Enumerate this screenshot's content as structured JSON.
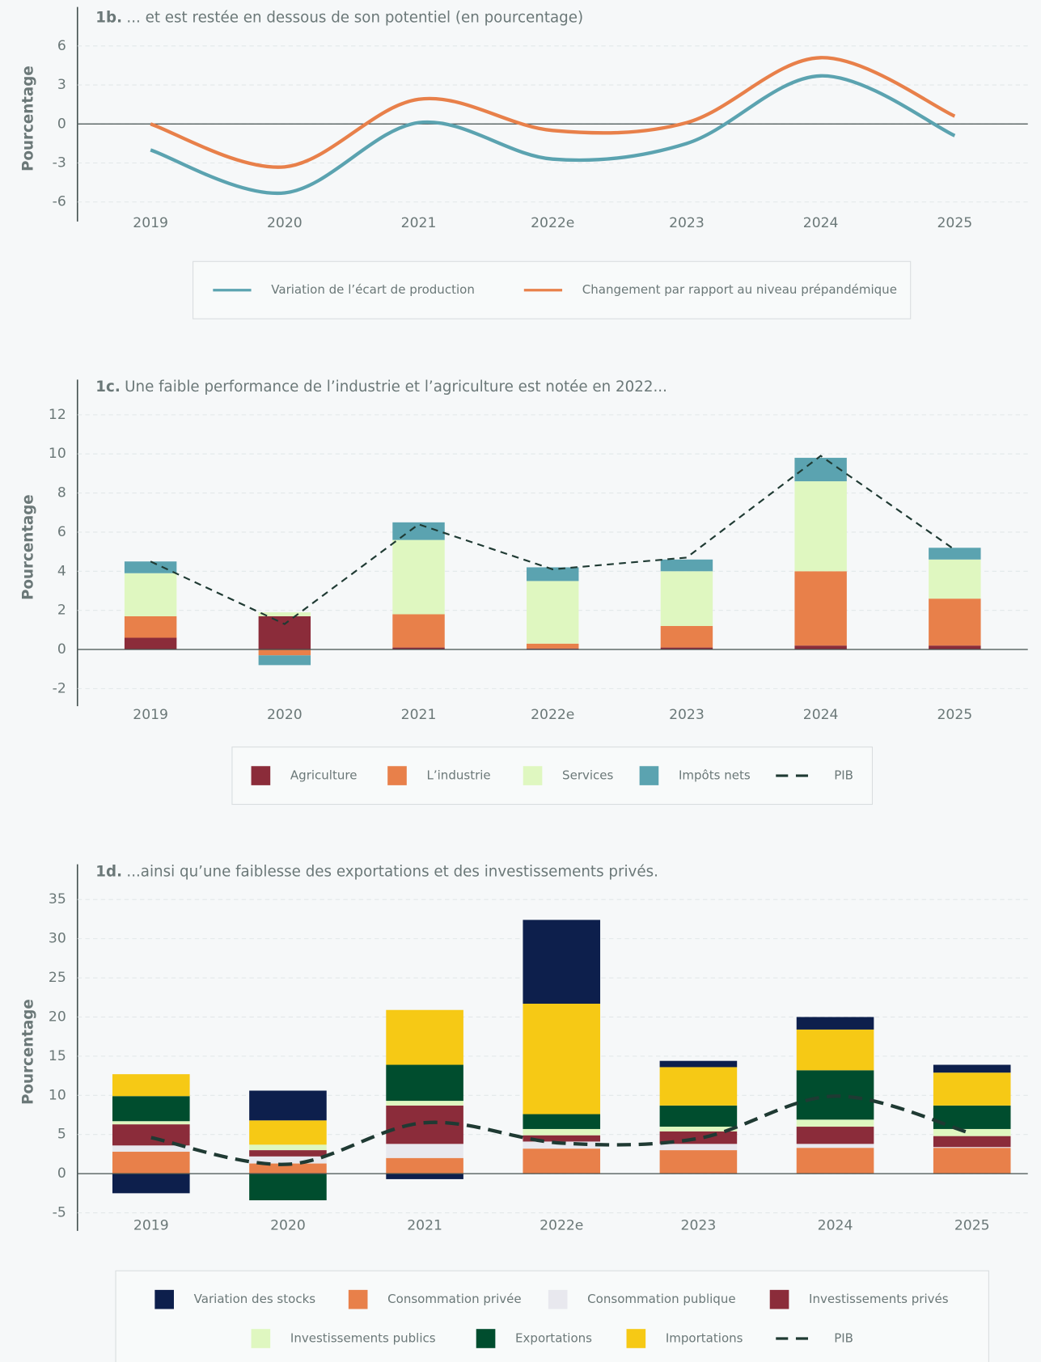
{
  "chart_data": [
    {
      "type": "line",
      "label": "1b.",
      "title": "... et est restée en dessous de son potentiel (en pourcentage)",
      "y_label": "Pourcentage",
      "categories": [
        "2019",
        "2020",
        "2021",
        "2022e",
        "2023",
        "2024",
        "2025"
      ],
      "series": [
        {
          "name": "Variation de l’écart de production",
          "color": "#5ba3b0",
          "smooth": true,
          "values": [
            -2.0,
            -5.3,
            0.1,
            -2.7,
            -1.5,
            3.7,
            -0.9
          ]
        },
        {
          "name": "Changement par rapport au niveau prépandémique",
          "color": "#e8804a",
          "smooth": true,
          "values": [
            0,
            -3.3,
            1.9,
            -0.5,
            0.1,
            5.1,
            0.6
          ]
        }
      ],
      "ylim": [
        -7.5,
        9
      ],
      "yticks": [
        6,
        3,
        0,
        -3,
        -6
      ],
      "grid": true
    },
    {
      "type": "stacked_bar",
      "label": "1c.",
      "title": "Une faible performance de l’industrie et l’agriculture est notée en 2022...",
      "y_label": "Pourcentage",
      "categories": [
        "2019",
        "2020",
        "2021",
        "2022e",
        "2023",
        "2024",
        "2025"
      ],
      "series": [
        {
          "name": "Agriculture",
          "color": "#8b2c3a",
          "values": [
            0.6,
            1.7,
            0.1,
            0.05,
            0.1,
            0.2,
            0.2
          ]
        },
        {
          "name": "L’industrie",
          "color": "#e8804a",
          "values": [
            1.1,
            -0.3,
            1.7,
            0.25,
            1.1,
            3.8,
            2.4
          ]
        },
        {
          "name": "Services",
          "color": "#dff7c0",
          "values": [
            2.2,
            0.2,
            3.8,
            3.2,
            2.8,
            4.6,
            2.0
          ]
        },
        {
          "name": "Impôts nets",
          "color": "#5ba3b0",
          "values": [
            0.6,
            -0.5,
            0.9,
            0.7,
            0.6,
            1.2,
            0.6
          ]
        },
        {
          "name": "PIB",
          "color": "#1f3a33",
          "type": "line",
          "smooth": false,
          "values": [
            4.5,
            1.3,
            6.4,
            4.1,
            4.7,
            9.9,
            5.1
          ]
        }
      ],
      "ylim": [
        -2.9,
        13.8
      ],
      "yticks": [
        12,
        10,
        8,
        6,
        4,
        2,
        0,
        -2
      ],
      "grid": true
    },
    {
      "type": "stacked_bar",
      "label": "1d.",
      "title": "...ainsi qu’une faiblesse des exportations et des investissements privés.",
      "y_label": "Pourcentage",
      "categories": [
        "2019",
        "2020",
        "2021",
        "2022e",
        "2023",
        "2024",
        "2025"
      ],
      "series": [
        {
          "name": "Variation des stocks",
          "color": "#0d1f4c",
          "values": [
            -2.5,
            3.8,
            -0.7,
            10.7,
            0.8,
            1.6,
            1.0
          ]
        },
        {
          "name": "Consommation privée",
          "color": "#e8804a",
          "values": [
            2.8,
            1.3,
            2.0,
            3.2,
            3.0,
            3.3,
            3.3
          ]
        },
        {
          "name": "Consommation publique",
          "color": "#e8e8ee",
          "values": [
            0.8,
            0.9,
            1.8,
            0.9,
            0.8,
            0.5,
            0.1
          ]
        },
        {
          "name": "Investissements privés",
          "color": "#8b2c3a",
          "values": [
            2.7,
            0.8,
            4.9,
            0.8,
            1.6,
            2.2,
            1.4
          ]
        },
        {
          "name": "Investissements publics",
          "color": "#dff7c0",
          "values": [
            0.4,
            0.7,
            0.6,
            0.8,
            0.6,
            0.9,
            0.9
          ]
        },
        {
          "name": "Exportations",
          "color": "#004d2e",
          "values": [
            3.2,
            -3.4,
            4.6,
            1.9,
            2.7,
            6.3,
            3.0
          ]
        },
        {
          "name": "Importations",
          "color": "#f6c915",
          "values": [
            2.8,
            3.1,
            7.0,
            14.1,
            4.9,
            5.2,
            4.2
          ]
        },
        {
          "name": "PIB",
          "color": "#1f3a33",
          "type": "line",
          "smooth": true,
          "values": [
            4.6,
            1.2,
            6.5,
            3.9,
            4.5,
            9.9,
            5.1
          ]
        }
      ],
      "ylim": [
        -7.3,
        39.5
      ],
      "yticks": [
        35,
        30,
        25,
        20,
        15,
        10,
        5,
        0,
        -5
      ],
      "grid": true
    }
  ]
}
